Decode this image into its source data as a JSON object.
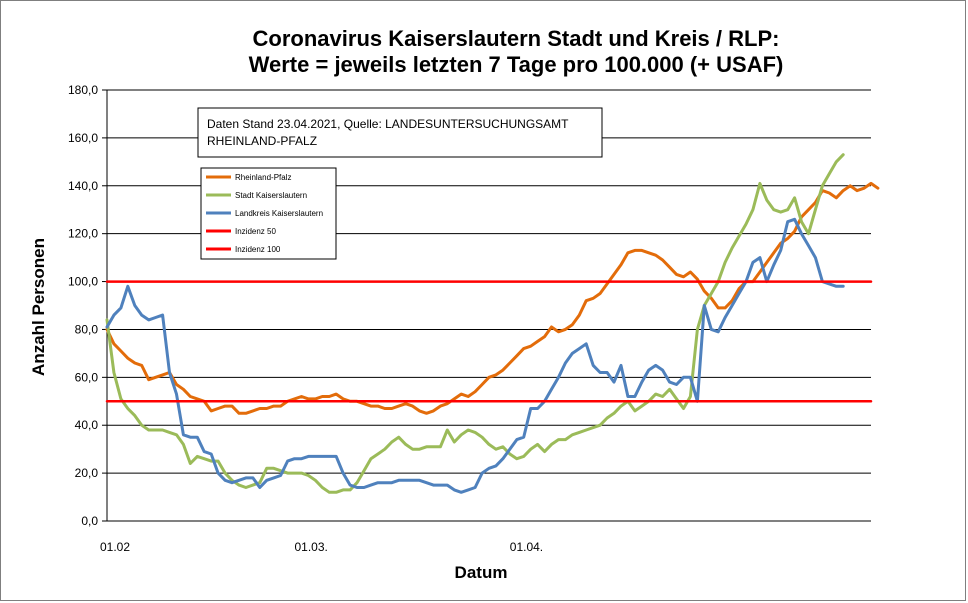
{
  "chart_data": {
    "type": "line",
    "title_line1": "Coronavirus Kaiserslautern Stadt und Kreis / RLP:",
    "title_line2": "Werte = jeweils letzten 7 Tage pro 100.000 (+ USAF)",
    "xlabel": "Datum",
    "ylabel": "Anzahl Personen",
    "note_line1": "Daten Stand 23.04.2021, Quelle: LANDESUNTERSUCHUNGSAMT",
    "note_line2": "RHEINLAND-PFALZ",
    "ylim": [
      0,
      180
    ],
    "xlim_days": [
      0,
      110
    ],
    "y_ticks": [
      "0,0",
      "20,0",
      "40,0",
      "60,0",
      "80,0",
      "100,0",
      "120,0",
      "140,0",
      "160,0",
      "180,0"
    ],
    "x_ticks": [
      {
        "label": "01.02",
        "day": 0
      },
      {
        "label": "01.03.",
        "day": 28
      },
      {
        "label": "01.04.",
        "day": 59
      }
    ],
    "grid": true,
    "legend_position": "inside-top-left",
    "series": [
      {
        "name": "Rheinland-Pfalz",
        "color": "#e36c0a",
        "values": [
          80,
          74,
          71,
          68,
          66,
          65,
          59,
          60,
          61,
          62,
          57,
          55,
          52,
          51,
          50,
          46,
          47,
          48,
          48,
          45,
          45,
          46,
          47,
          47,
          48,
          48,
          50,
          51,
          52,
          51,
          51,
          52,
          52,
          53,
          51,
          50,
          50,
          49,
          48,
          48,
          47,
          47,
          48,
          49,
          48,
          46,
          45,
          46,
          48,
          49,
          51,
          53,
          52,
          54,
          57,
          60,
          61,
          63,
          66,
          69,
          72,
          73,
          75,
          77,
          81,
          79,
          80,
          82,
          86,
          92,
          93,
          95,
          99,
          103,
          107,
          112,
          113,
          113,
          112,
          111,
          109,
          106,
          103,
          102,
          104,
          101,
          96,
          93,
          89,
          89,
          92,
          97,
          100,
          100,
          104,
          108,
          112,
          116,
          118,
          121,
          127,
          130,
          133,
          138,
          137,
          135,
          138,
          140,
          138,
          139,
          141,
          139
        ]
      },
      {
        "name": "Stadt Kaiserslautern",
        "color": "#9bbb59",
        "values": [
          84,
          62,
          51,
          47,
          44,
          40,
          38,
          38,
          38,
          37,
          36,
          32,
          24,
          27,
          26,
          25,
          25,
          20,
          17,
          15,
          14,
          15,
          16,
          22,
          22,
          21,
          20,
          20,
          20,
          19,
          17,
          14,
          12,
          12,
          13,
          13,
          16,
          21,
          26,
          28,
          30,
          33,
          35,
          32,
          30,
          30,
          31,
          31,
          31,
          38,
          33,
          36,
          38,
          37,
          35,
          32,
          30,
          31,
          28,
          26,
          27,
          30,
          32,
          29,
          32,
          34,
          34,
          36,
          37,
          38,
          39,
          40,
          43,
          45,
          48,
          50,
          46,
          48,
          50,
          53,
          52,
          55,
          51,
          47,
          52,
          80,
          90,
          95,
          100,
          108,
          114,
          119,
          124,
          130,
          141,
          134,
          130,
          129,
          130,
          135,
          125,
          120,
          130,
          140,
          145,
          150,
          153
        ]
      },
      {
        "name": "Landkreis Kaiserslautern",
        "color": "#4f81bd",
        "values": [
          81,
          86,
          89,
          98,
          90,
          86,
          84,
          85,
          86,
          62,
          53,
          36,
          35,
          35,
          29,
          28,
          20,
          17,
          16,
          17,
          18,
          18,
          14,
          17,
          18,
          19,
          25,
          26,
          26,
          27,
          27,
          27,
          27,
          27,
          20,
          15,
          14,
          14,
          15,
          16,
          16,
          16,
          17,
          17,
          17,
          17,
          16,
          15,
          15,
          15,
          13,
          12,
          13,
          14,
          20,
          22,
          23,
          26,
          30,
          34,
          35,
          47,
          47,
          50,
          55,
          60,
          66,
          70,
          72,
          74,
          65,
          62,
          62,
          58,
          65,
          52,
          52,
          58,
          63,
          65,
          63,
          58,
          57,
          60,
          60,
          50,
          90,
          80,
          79,
          85,
          90,
          95,
          100,
          108,
          110,
          100,
          107,
          113,
          125,
          126,
          120,
          115,
          110,
          100,
          99,
          98,
          98
        ]
      },
      {
        "name": "Inzidenz 50",
        "color": "#ff0000",
        "values": [
          50,
          50
        ]
      },
      {
        "name": "Inzidenz 100",
        "color": "#ff0000",
        "values": [
          100,
          100
        ]
      }
    ]
  }
}
